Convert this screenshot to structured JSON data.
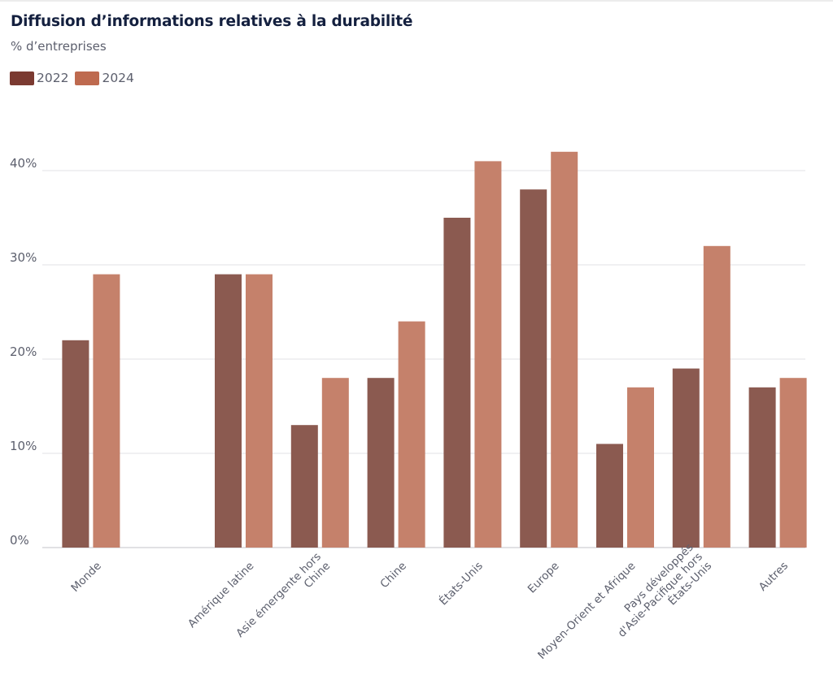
{
  "header": {
    "title": "Diffusion d’informations relatives à la durabilité",
    "subtitle": "% d’entreprises"
  },
  "legend": [
    {
      "label": "2022",
      "color": "#7b3a31"
    },
    {
      "label": "2024",
      "color": "#be6a4f"
    }
  ],
  "chart_data": {
    "type": "bar",
    "title": "Diffusion d’informations relatives à la durabilité",
    "subtitle": "% d’entreprises",
    "xlabel": "",
    "ylabel": "% d’entreprises",
    "ylim": [
      0,
      40
    ],
    "yticks": [
      0,
      10,
      20,
      30,
      40
    ],
    "ytick_labels": [
      "0%",
      "10%",
      "20%",
      "30%",
      "40%"
    ],
    "grid": true,
    "legend_position": "top-left",
    "categories": [
      [
        "Monde"
      ],
      [
        ""
      ],
      [
        "Amérique latine"
      ],
      [
        "Asie émergente hors",
        "Chine"
      ],
      [
        "Chine"
      ],
      [
        "États-Unis"
      ],
      [
        "Europe"
      ],
      [
        "Moyen-Orient et Afrique"
      ],
      [
        "Pays développés",
        "d'Asie-Pacifique hors",
        "États-Unis"
      ],
      [
        "Autres"
      ]
    ],
    "series": [
      {
        "name": "2022",
        "color": "#8b5a50",
        "values": [
          22,
          null,
          29,
          13,
          18,
          35,
          38,
          11,
          19,
          17
        ]
      },
      {
        "name": "2024",
        "color": "#c5816b",
        "values": [
          29,
          null,
          29,
          18,
          24,
          41,
          42,
          17,
          32,
          18
        ]
      }
    ]
  }
}
